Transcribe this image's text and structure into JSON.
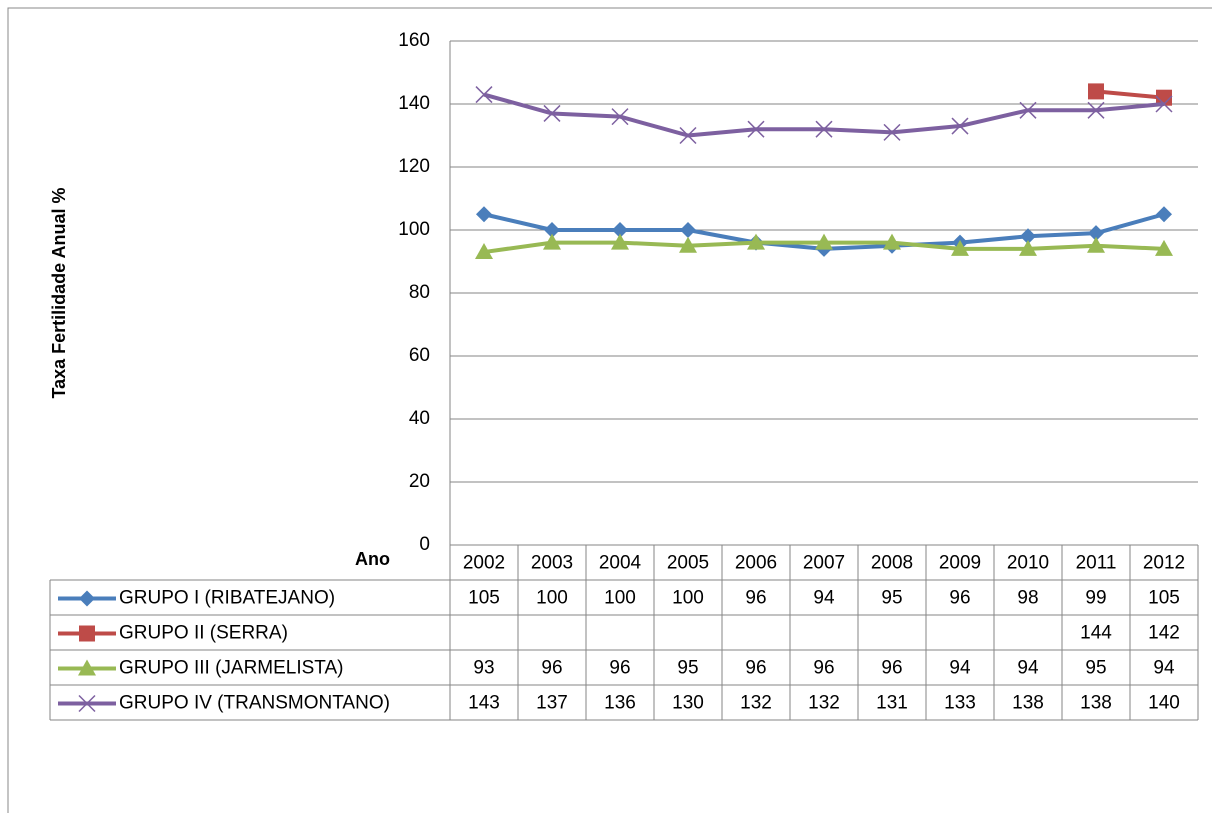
{
  "chart_data": {
    "type": "line",
    "y_label": "Taxa Fertilidade Anual %",
    "x_label": "Ano",
    "categories": [
      "2002",
      "2003",
      "2004",
      "2005",
      "2006",
      "2007",
      "2008",
      "2009",
      "2010",
      "2011",
      "2012"
    ],
    "series": [
      {
        "name": "GRUPO I (RIBATEJANO)",
        "color": "#4a7ebb",
        "marker": "diamond",
        "values": [
          105,
          100,
          100,
          100,
          96,
          94,
          95,
          96,
          98,
          99,
          105
        ]
      },
      {
        "name": "GRUPO II (SERRA)",
        "color": "#be4b48",
        "marker": "square",
        "values": [
          null,
          null,
          null,
          null,
          null,
          null,
          null,
          null,
          null,
          144,
          142
        ]
      },
      {
        "name": "GRUPO III (JARMELISTA)",
        "color": "#98b954",
        "marker": "triangle",
        "values": [
          93,
          96,
          96,
          95,
          96,
          96,
          96,
          94,
          94,
          95,
          94
        ]
      },
      {
        "name": "GRUPO IV (TRANSMONTANO)",
        "color": "#7d60a0",
        "marker": "x",
        "values": [
          143,
          137,
          136,
          130,
          132,
          132,
          131,
          133,
          138,
          138,
          140
        ]
      }
    ],
    "ylim": [
      0,
      160
    ],
    "yticks": [
      0,
      20,
      40,
      60,
      80,
      100,
      120,
      140,
      160
    ],
    "grid": true
  }
}
